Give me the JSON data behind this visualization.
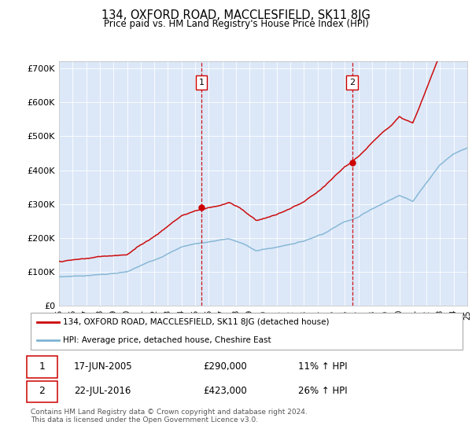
{
  "title": "134, OXFORD ROAD, MACCLESFIELD, SK11 8JG",
  "subtitle": "Price paid vs. HM Land Registry's House Price Index (HPI)",
  "plot_bg_color": "#dce8f8",
  "ylim": [
    0,
    720000
  ],
  "yticks": [
    0,
    100000,
    200000,
    300000,
    400000,
    500000,
    600000,
    700000
  ],
  "ytick_labels": [
    "£0",
    "£100K",
    "£200K",
    "£300K",
    "£400K",
    "£500K",
    "£600K",
    "£700K"
  ],
  "year_start": 1995,
  "year_end": 2025,
  "sale1_year": 2005.46,
  "sale1_price": 290000,
  "sale2_year": 2016.55,
  "sale2_price": 423000,
  "red_line_color": "#cc0000",
  "blue_line_color": "#7fb3d3",
  "legend_label1": "134, OXFORD ROAD, MACCLESFIELD, SK11 8JG (detached house)",
  "legend_label2": "HPI: Average price, detached house, Cheshire East",
  "footnote": "Contains HM Land Registry data © Crown copyright and database right 2024.\nThis data is licensed under the Open Government Licence v3.0.",
  "table_row1": [
    "1",
    "17-JUN-2005",
    "£290,000",
    "11% ↑ HPI"
  ],
  "table_row2": [
    "2",
    "22-JUL-2016",
    "£423,000",
    "26% ↑ HPI"
  ]
}
